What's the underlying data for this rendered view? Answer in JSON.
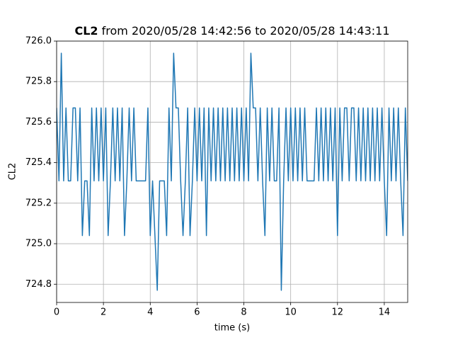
{
  "chart_data": {
    "type": "line",
    "title_parts": [
      "CL2",
      "from 2020/05/28 14:42:56 to 2020/05/28 14:43:11"
    ],
    "xlabel": "time (s)",
    "ylabel": "CL2",
    "x": [
      0,
      0.1,
      0.2,
      0.3,
      0.4,
      0.5,
      0.6,
      0.7,
      0.8,
      0.9,
      1,
      1.1,
      1.2,
      1.3,
      1.4,
      1.5,
      1.6,
      1.7,
      1.8,
      1.9,
      2,
      2.1,
      2.2,
      2.3,
      2.4,
      2.5,
      2.6,
      2.7,
      2.8,
      2.9,
      3,
      3.1,
      3.2,
      3.3,
      3.4,
      3.5,
      3.6,
      3.7,
      3.8,
      3.9,
      4,
      4.1,
      4.2,
      4.3,
      4.4,
      4.5,
      4.6,
      4.7,
      4.8,
      4.9,
      5,
      5.1,
      5.2,
      5.3,
      5.4,
      5.5,
      5.6,
      5.7,
      5.8,
      5.9,
      6,
      6.1,
      6.2,
      6.3,
      6.4,
      6.5,
      6.6,
      6.7,
      6.8,
      6.9,
      7,
      7.1,
      7.2,
      7.3,
      7.4,
      7.5,
      7.6,
      7.7,
      7.8,
      7.9,
      8,
      8.1,
      8.2,
      8.3,
      8.4,
      8.5,
      8.6,
      8.7,
      8.8,
      8.9,
      9,
      9.1,
      9.2,
      9.3,
      9.4,
      9.5,
      9.6,
      9.7,
      9.8,
      9.9,
      10,
      10.1,
      10.2,
      10.3,
      10.4,
      10.5,
      10.6,
      10.7,
      10.8,
      10.9,
      11,
      11.1,
      11.2,
      11.3,
      11.4,
      11.5,
      11.6,
      11.7,
      11.8,
      11.9,
      12,
      12.1,
      12.2,
      12.3,
      12.4,
      12.5,
      12.6,
      12.7,
      12.8,
      12.9,
      13,
      13.1,
      13.2,
      13.3,
      13.4,
      13.5,
      13.6,
      13.7,
      13.8,
      13.9,
      14,
      14.1,
      14.2,
      14.3,
      14.4,
      14.5,
      14.6,
      14.7,
      14.8,
      14.9,
      15
    ],
    "series": [
      {
        "color": "#1f77b4",
        "values": [
          725.67,
          725.31,
          725.94,
          725.31,
          725.67,
          725.31,
          725.31,
          725.67,
          725.67,
          725.31,
          725.67,
          725.04,
          725.31,
          725.31,
          725.04,
          725.67,
          725.31,
          725.67,
          725.31,
          725.67,
          725.31,
          725.67,
          725.04,
          725.31,
          725.67,
          725.31,
          725.67,
          725.31,
          725.67,
          725.04,
          725.31,
          725.67,
          725.31,
          725.67,
          725.31,
          725.31,
          725.31,
          725.31,
          725.31,
          725.67,
          725.04,
          725.31,
          725.04,
          724.77,
          725.31,
          725.31,
          725.31,
          725.04,
          725.67,
          725.31,
          725.94,
          725.67,
          725.67,
          725.31,
          725.04,
          725.31,
          725.67,
          725.04,
          725.31,
          725.67,
          725.31,
          725.67,
          725.31,
          725.67,
          725.04,
          725.67,
          725.31,
          725.67,
          725.31,
          725.67,
          725.31,
          725.67,
          725.31,
          725.67,
          725.31,
          725.67,
          725.31,
          725.67,
          725.31,
          725.67,
          725.31,
          725.67,
          725.31,
          725.94,
          725.67,
          725.67,
          725.31,
          725.67,
          725.31,
          725.04,
          725.67,
          725.31,
          725.67,
          725.31,
          725.31,
          725.67,
          724.77,
          725.31,
          725.67,
          725.31,
          725.67,
          725.31,
          725.67,
          725.31,
          725.67,
          725.31,
          725.67,
          725.31,
          725.31,
          725.31,
          725.31,
          725.67,
          725.31,
          725.67,
          725.31,
          725.67,
          725.31,
          725.67,
          725.31,
          725.67,
          725.04,
          725.67,
          725.31,
          725.67,
          725.67,
          725.31,
          725.67,
          725.67,
          725.31,
          725.67,
          725.31,
          725.67,
          725.31,
          725.67,
          725.31,
          725.67,
          725.31,
          725.67,
          725.31,
          725.67,
          725.31,
          725.04,
          725.67,
          725.31,
          725.67,
          725.31,
          725.67,
          725.31,
          725.04,
          725.67,
          725.31
        ]
      }
    ],
    "xlim": [
      0,
      15
    ],
    "xticks": [
      0,
      2,
      4,
      6,
      8,
      10,
      12,
      14
    ],
    "ylim": [
      724.71,
      726.0
    ],
    "yticks": [
      724.8,
      {
        "value": 725,
        "label": "725.0"
      },
      725.2,
      725.4,
      725.6,
      725.8,
      {
        "value": 726,
        "label": "726.0"
      }
    ],
    "grid": true
  }
}
